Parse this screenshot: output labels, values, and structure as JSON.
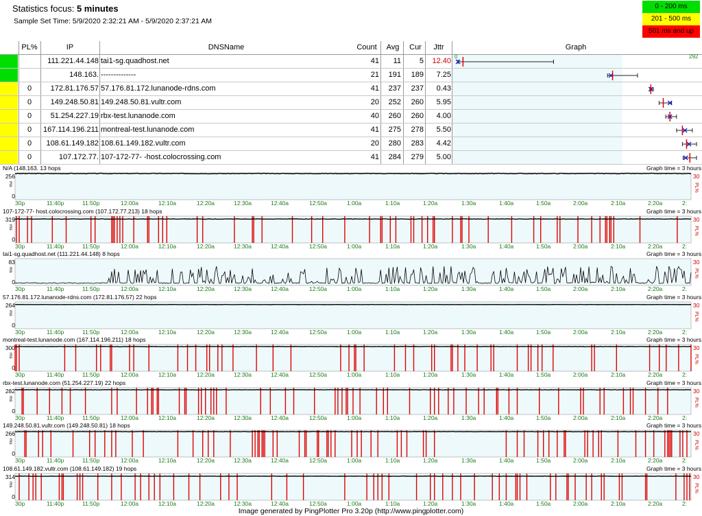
{
  "header": {
    "focus_label": "Statistics focus:",
    "focus_value": "5 minutes",
    "sample_label": "Sample Set Time:",
    "sample_value": "5/9/2020 2:32:21 AM - 5/9/2020 2:37:21 AM"
  },
  "legend": [
    {
      "label": "0 - 200 ms",
      "color": "#00dd00"
    },
    {
      "label": "201 - 500 ms",
      "color": "#ffff00"
    },
    {
      "label": "501 ms and up",
      "color": "#ff0000"
    }
  ],
  "table": {
    "columns": {
      "pl": "PL%",
      "ip": "IP",
      "dns": "DNSName",
      "count": "Count",
      "avg": "Avg",
      "cur": "Cur",
      "jitter": "Jttr",
      "graph": "Graph"
    },
    "graph_axis_min": "0",
    "graph_axis_max": "292",
    "rows": [
      {
        "pl": "",
        "ip": "111.221.44.148",
        "dns": "tai1-sg.quadhost.net",
        "count": "41",
        "avg": "11",
        "cur": "5",
        "jitter": "12.40",
        "jitter_color": "#d00000",
        "color": "#00dd00",
        "min": 5,
        "max": 120
      },
      {
        "pl": "",
        "ip": "148.163.",
        "dns": "--------------",
        "count": "21",
        "avg": "191",
        "cur": "189",
        "jitter": "7.25",
        "jitter_color": "#000000",
        "color": "#00dd00",
        "min": 185,
        "max": 221
      },
      {
        "pl": "0",
        "ip": "172.81.176.57",
        "dns": "57.176.81.172.lunanode-rdns.com",
        "count": "41",
        "avg": "237",
        "cur": "237",
        "jitter": "0.43",
        "jitter_color": "#000000",
        "color": "#ffff00",
        "min": 236,
        "max": 240
      },
      {
        "pl": "0",
        "ip": "149.248.50.81",
        "dns": "149.248.50.81.vultr.com",
        "count": "20",
        "avg": "252",
        "cur": "260",
        "jitter": "5.95",
        "jitter_color": "#000000",
        "color": "#ffff00",
        "min": 247,
        "max": 262
      },
      {
        "pl": "0",
        "ip": "51.254.227.19",
        "dns": "rbx-test.lunanode.com",
        "count": "40",
        "avg": "260",
        "cur": "260",
        "jitter": "4.00",
        "jitter_color": "#000000",
        "color": "#ffff00",
        "min": 255,
        "max": 268
      },
      {
        "pl": "0",
        "ip": "167.114.196.211",
        "dns": "montreal-test.lunanode.com",
        "count": "41",
        "avg": "275",
        "cur": "278",
        "jitter": "5.50",
        "jitter_color": "#000000",
        "color": "#ffff00",
        "min": 268,
        "max": 287
      },
      {
        "pl": "0",
        "ip": "108.61.149.182",
        "dns": "108.61.149.182.vultr.com",
        "count": "20",
        "avg": "280",
        "cur": "283",
        "jitter": "4.42",
        "jitter_color": "#000000",
        "color": "#ffff00",
        "min": 275,
        "max": 292
      },
      {
        "pl": "0",
        "ip": "107.172.77.",
        "dns": "107-172-77-      -host.colocrossing.com",
        "count": "41",
        "avg": "284",
        "cur": "279",
        "jitter": "5.00",
        "jitter_color": "#000000",
        "color": "#ffff00",
        "min": 276,
        "max": 292
      }
    ]
  },
  "chart_data": [
    {
      "type": "line",
      "title": "N/A (148.163.     13 hops",
      "graph_time": "Graph time = 3 hours",
      "ymax": 256,
      "ylabel": "ms",
      "pl_max": "30",
      "pl_label": "PL%",
      "base": 250,
      "noise": 6,
      "loss_density": 0.0,
      "x_ticks": [
        "30p",
        "11:40p",
        "11:50p",
        "12:00a",
        "12:10a",
        "12:20a",
        "12:30a",
        "12:40a",
        "12:50a",
        "1:00a",
        "1:10a",
        "1:20a",
        "1:30a",
        "1:40a",
        "1:50a",
        "2:00a",
        "2:10a",
        "2:20a",
        "2:"
      ]
    },
    {
      "type": "line",
      "title": "107-172-77-      host.colocrossing.com (107.172.77.213) 18 hops",
      "graph_time": "Graph time = 3 hours",
      "ymax": 319,
      "ylabel": "ms",
      "pl_max": "30",
      "pl_label": "PL%",
      "base": 285,
      "noise": 5,
      "loss_density": 0.12,
      "x_ticks": [
        "30p",
        "11:40p",
        "11:50p",
        "12:00a",
        "12:10a",
        "12:20a",
        "12:30a",
        "12:40a",
        "12:50a",
        "1:00a",
        "1:10a",
        "1:20a",
        "1:30a",
        "1:40a",
        "1:50a",
        "2:00a",
        "2:10a",
        "2:20a",
        "2:"
      ]
    },
    {
      "type": "line",
      "title": "tai1-sg.quadhost.net (111.221.44.148) 8 hops",
      "graph_time": "Graph time = 3 hours",
      "ymax": 83,
      "ylabel": "ms",
      "pl_max": "30",
      "pl_label": "PL%",
      "base": 6,
      "noise": 30,
      "loss_density": 0.0,
      "x_ticks": [
        "30p",
        "11:40p",
        "11:50p",
        "12:00a",
        "12:10a",
        "12:20a",
        "12:30a",
        "12:40a",
        "12:50a",
        "1:00a",
        "1:10a",
        "1:20a",
        "1:30a",
        "1:40a",
        "1:50a",
        "2:00a",
        "2:10a",
        "2:20a",
        "2:"
      ]
    },
    {
      "type": "line",
      "title": "57.176.81.172.lunanode-rdns.com (172.81.176.57) 22 hops",
      "graph_time": "Graph time = 3 hours",
      "ymax": 264,
      "ylabel": "ms",
      "pl_max": "30",
      "pl_label": "PL%",
      "base": 238,
      "noise": 2,
      "loss_density": 0.0,
      "x_ticks": [
        "30p",
        "11:40p",
        "11:50p",
        "12:00a",
        "12:10a",
        "12:20a",
        "12:30a",
        "12:40a",
        "12:50a",
        "1:00a",
        "1:10a",
        "1:20a",
        "1:30a",
        "1:40a",
        "1:50a",
        "2:00a",
        "2:10a",
        "2:20a",
        "2:"
      ]
    },
    {
      "type": "line",
      "title": "montreal-test.lunanode.com (167.114.196.211) 18 hops",
      "graph_time": "Graph time = 3 hours",
      "ymax": 300,
      "ylabel": "ms",
      "pl_max": "30",
      "pl_label": "PL%",
      "base": 276,
      "noise": 4,
      "loss_density": 0.1,
      "x_ticks": [
        "30p",
        "11:40p",
        "11:50p",
        "12:00a",
        "12:10a",
        "12:20a",
        "12:30a",
        "12:40a",
        "12:50a",
        "1:00a",
        "1:10a",
        "1:20a",
        "1:30a",
        "1:40a",
        "1:50a",
        "2:00a",
        "2:10a",
        "2:20a",
        "2:"
      ]
    },
    {
      "type": "line",
      "title": "rbx-test.lunanode.com (51.254.227.19) 22 hops",
      "graph_time": "Graph time = 3 hours",
      "ymax": 282,
      "ylabel": "ms",
      "pl_max": "30",
      "pl_label": "PL%",
      "base": 260,
      "noise": 4,
      "loss_density": 0.1,
      "x_ticks": [
        "30p",
        "11:40p",
        "11:50p",
        "12:00a",
        "12:10a",
        "12:20a",
        "12:30a",
        "12:40a",
        "12:50a",
        "1:00a",
        "1:10a",
        "1:20a",
        "1:30a",
        "1:40a",
        "1:50a",
        "2:00a",
        "2:10a",
        "2:20a",
        "2:"
      ]
    },
    {
      "type": "line",
      "title": "149.248.50.81.vultr.com (149.248.50.81) 18 hops",
      "graph_time": "Graph time = 3 hours",
      "ymax": 266,
      "ylabel": "ms",
      "pl_max": "30",
      "pl_label": "PL%",
      "base": 252,
      "noise": 4,
      "loss_density": 0.13,
      "x_ticks": [
        "30p",
        "11:40p",
        "11:50p",
        "12:00a",
        "12:10a",
        "12:20a",
        "12:30a",
        "12:40a",
        "12:50a",
        "1:00a",
        "1:10a",
        "1:20a",
        "1:30a",
        "1:40a",
        "1:50a",
        "2:00a",
        "2:10a",
        "2:20a",
        "2:"
      ]
    },
    {
      "type": "line",
      "title": "108.61.149.182.vultr.com (108.61.149.182) 19 hops",
      "graph_time": "Graph time = 3 hours",
      "ymax": 314,
      "ylabel": "ms",
      "pl_max": "30",
      "pl_label": "PL%",
      "base": 282,
      "noise": 4,
      "loss_density": 0.13,
      "x_ticks": [
        "30p",
        "11:40p",
        "11:50p",
        "12:00a",
        "12:10a",
        "12:20a",
        "12:30a",
        "12:40a",
        "12:50a",
        "1:00a",
        "1:10a",
        "1:20a",
        "1:30a",
        "1:40a",
        "1:50a",
        "2:00a",
        "2:10a",
        "2:20a",
        "2:"
      ]
    }
  ],
  "footer": "Image generated by PingPlotter Pro 3.20p (http://www.pingplotter.com)"
}
